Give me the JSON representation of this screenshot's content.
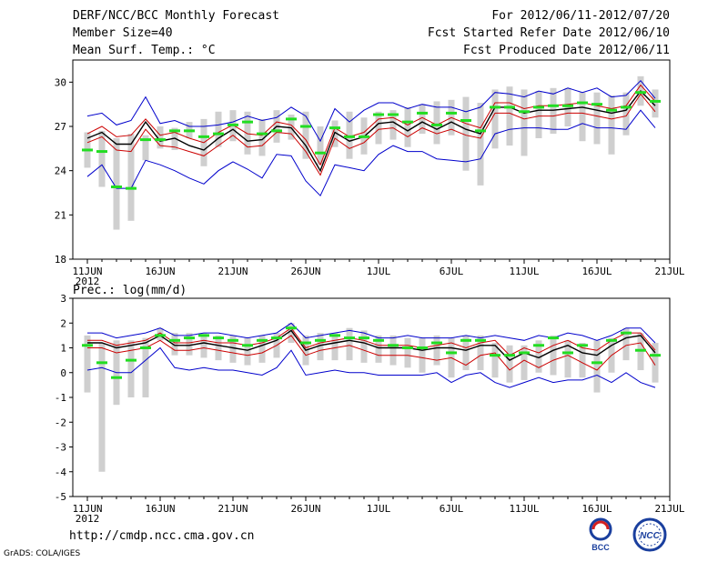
{
  "header": {
    "title": "DERF/NCC/BCC Monthly Forecast",
    "member_size": "Member Size=40",
    "variable": "Mean Surf. Temp.: °C",
    "period": "For 2012/06/11-2012/07/20",
    "fcst_started": "Fcst Started Refer Date 2012/06/10",
    "fcst_produced": "Fcst Produced Date 2012/06/11"
  },
  "footer": {
    "url": "http://cmdp.ncc.cma.gov.cn",
    "grads": "GrADS: COLA/IGES",
    "logo_bcc": "BCC",
    "logo_ncc": "NCC"
  },
  "colors": {
    "envelope": "#0000cc",
    "mean": "#cc0000",
    "center": "#000000",
    "member": "#22dd22",
    "box": "#cfcfcf"
  },
  "chart_data": [
    {
      "type": "line",
      "title": "Mean Surf. Temp.: °C",
      "ylim": [
        18,
        31.5
      ],
      "yticks": [
        18,
        21,
        24,
        27,
        30
      ],
      "xlim": [
        0,
        40
      ],
      "xtick_labels": [
        "11JUN",
        "16JUN",
        "21JUN",
        "26JUN",
        "1JUL",
        "6JUL",
        "11JUL",
        "16JUL",
        "21JUL"
      ],
      "x_start_label": "2012",
      "series": [
        {
          "name": "upper",
          "values": [
            27.7,
            27.9,
            27.1,
            27.4,
            29.0,
            27.2,
            27.4,
            27.0,
            27.0,
            27.1,
            27.3,
            27.7,
            27.4,
            27.6,
            28.3,
            27.7,
            26.0,
            28.2,
            27.3,
            28.1,
            28.6,
            28.6,
            28.2,
            28.5,
            28.3,
            28.3,
            28.0,
            28.3,
            29.3,
            29.2,
            29.0,
            29.4,
            29.2,
            29.6,
            29.3,
            29.6,
            29.0,
            29.1,
            30.1,
            28.9
          ]
        },
        {
          "name": "upper_mean",
          "values": [
            26.5,
            27.0,
            26.3,
            26.4,
            27.5,
            26.4,
            26.6,
            26.2,
            25.9,
            26.6,
            27.1,
            26.5,
            26.4,
            27.3,
            27.1,
            26.1,
            24.4,
            26.9,
            26.3,
            26.6,
            27.5,
            27.6,
            27.1,
            27.6,
            27.1,
            27.6,
            27.2,
            26.9,
            28.6,
            28.6,
            28.2,
            28.4,
            28.4,
            28.5,
            28.6,
            28.4,
            28.2,
            28.4,
            29.8,
            28.7
          ]
        },
        {
          "name": "center",
          "values": [
            26.2,
            26.6,
            25.8,
            25.8,
            27.3,
            26.0,
            26.2,
            25.7,
            25.4,
            26.2,
            26.8,
            26.0,
            26.1,
            27.0,
            26.9,
            25.7,
            24.0,
            26.6,
            26.0,
            26.3,
            27.2,
            27.3,
            26.7,
            27.3,
            26.8,
            27.3,
            26.8,
            26.5,
            28.3,
            28.3,
            27.9,
            28.1,
            28.1,
            28.2,
            28.3,
            28.1,
            27.9,
            28.1,
            29.4,
            28.4
          ]
        },
        {
          "name": "lower_mean",
          "values": [
            25.9,
            26.3,
            25.4,
            25.3,
            26.8,
            25.7,
            25.6,
            25.3,
            25.0,
            25.7,
            26.4,
            25.6,
            25.7,
            26.6,
            26.5,
            25.3,
            23.7,
            26.2,
            25.5,
            25.9,
            26.8,
            26.9,
            26.3,
            26.9,
            26.5,
            26.8,
            26.4,
            26.2,
            27.9,
            27.9,
            27.5,
            27.7,
            27.7,
            27.9,
            27.9,
            27.7,
            27.5,
            27.7,
            29.2,
            28.0
          ]
        },
        {
          "name": "lower",
          "values": [
            23.6,
            24.4,
            22.8,
            22.8,
            24.7,
            24.4,
            24.0,
            23.5,
            23.1,
            24.0,
            24.6,
            24.1,
            23.5,
            25.1,
            25.0,
            23.3,
            22.3,
            24.4,
            24.2,
            24.0,
            25.1,
            25.7,
            25.3,
            25.3,
            24.8,
            24.7,
            24.6,
            24.8,
            26.5,
            26.8,
            26.9,
            26.9,
            26.8,
            26.8,
            27.2,
            26.9,
            26.9,
            26.8,
            28.1,
            26.9
          ]
        },
        {
          "name": "member_dash",
          "values": [
            25.4,
            25.3,
            22.9,
            22.8,
            26.1,
            26.1,
            26.7,
            26.7,
            26.3,
            26.5,
            27.1,
            27.3,
            26.5,
            26.7,
            27.5,
            27.0,
            25.2,
            26.9,
            26.3,
            26.3,
            27.8,
            27.8,
            27.3,
            27.9,
            27.1,
            27.9,
            27.4,
            26.7,
            28.3,
            28.3,
            28.0,
            28.3,
            28.4,
            28.4,
            28.6,
            28.5,
            28.1,
            28.3,
            29.3,
            28.7
          ]
        },
        {
          "name": "box_high",
          "values": [
            26.6,
            26.7,
            26.2,
            26.5,
            26.4,
            27.0,
            26.9,
            27.3,
            27.5,
            28.0,
            28.1,
            28.0,
            27.5,
            28.1,
            27.8,
            28.0,
            27.0,
            27.4,
            28.0,
            27.6,
            28.0,
            28.1,
            28.3,
            28.5,
            28.7,
            28.8,
            29.0,
            28.6,
            29.5,
            29.7,
            29.5,
            29.4,
            29.6,
            29.6,
            29.3,
            29.3,
            29.1,
            29.3,
            30.4,
            29.5
          ]
        },
        {
          "name": "box_low",
          "values": [
            24.2,
            22.9,
            20.0,
            20.6,
            24.7,
            25.5,
            25.4,
            26.2,
            24.3,
            25.6,
            26.0,
            25.1,
            25.0,
            25.9,
            26.1,
            24.8,
            24.4,
            25.6,
            24.8,
            25.1,
            25.8,
            26.1,
            25.6,
            26.5,
            25.8,
            26.4,
            24.0,
            23.0,
            25.5,
            25.7,
            25.0,
            26.2,
            26.5,
            27.0,
            26.0,
            25.8,
            25.1,
            26.4,
            28.4,
            27.6
          ]
        }
      ]
    },
    {
      "type": "line",
      "title": "Prec.: log(mm/d)",
      "ylim": [
        -5,
        3
      ],
      "yticks": [
        -5,
        -4,
        -3,
        -2,
        -1,
        0,
        1,
        2,
        3
      ],
      "xlim": [
        0,
        40
      ],
      "xtick_labels": [
        "11JUN",
        "16JUN",
        "21JUN",
        "26JUN",
        "1JUL",
        "6JUL",
        "11JUL",
        "16JUL",
        "21JUL"
      ],
      "x_start_label": "2012",
      "series": [
        {
          "name": "upper",
          "values": [
            1.6,
            1.6,
            1.4,
            1.5,
            1.6,
            1.8,
            1.5,
            1.5,
            1.6,
            1.6,
            1.5,
            1.4,
            1.5,
            1.6,
            2.0,
            1.4,
            1.5,
            1.6,
            1.7,
            1.6,
            1.4,
            1.4,
            1.5,
            1.4,
            1.4,
            1.4,
            1.5,
            1.4,
            1.5,
            1.4,
            1.3,
            1.5,
            1.4,
            1.6,
            1.5,
            1.3,
            1.5,
            1.8,
            1.8,
            1.2
          ]
        },
        {
          "name": "upper_mean",
          "values": [
            1.3,
            1.3,
            1.1,
            1.2,
            1.3,
            1.6,
            1.2,
            1.2,
            1.3,
            1.2,
            1.2,
            1.1,
            1.2,
            1.4,
            1.8,
            1.0,
            1.2,
            1.3,
            1.4,
            1.3,
            1.1,
            1.1,
            1.1,
            1.0,
            1.1,
            1.2,
            1.0,
            1.2,
            1.3,
            0.7,
            1.0,
            0.8,
            1.1,
            1.3,
            1.0,
            0.9,
            1.3,
            1.6,
            1.6,
            0.9
          ]
        },
        {
          "name": "center",
          "values": [
            1.2,
            1.2,
            1.0,
            1.1,
            1.2,
            1.5,
            1.1,
            1.1,
            1.2,
            1.1,
            1.0,
            0.9,
            1.1,
            1.3,
            1.7,
            0.9,
            1.1,
            1.2,
            1.3,
            1.2,
            1.0,
            1.0,
            1.0,
            0.9,
            1.0,
            1.0,
            0.9,
            1.1,
            1.1,
            0.5,
            0.8,
            0.6,
            0.9,
            1.1,
            0.8,
            0.7,
            1.1,
            1.4,
            1.5,
            0.8
          ]
        },
        {
          "name": "lower_mean",
          "values": [
            1.0,
            1.0,
            0.8,
            0.9,
            1.0,
            1.3,
            0.9,
            0.9,
            1.0,
            0.9,
            0.8,
            0.7,
            0.8,
            1.1,
            1.5,
            0.7,
            0.9,
            1.0,
            1.1,
            0.9,
            0.7,
            0.7,
            0.7,
            0.6,
            0.5,
            0.6,
            0.3,
            0.7,
            0.8,
            0.1,
            0.5,
            0.2,
            0.5,
            0.7,
            0.4,
            0.1,
            0.7,
            1.1,
            1.2,
            0.3
          ]
        },
        {
          "name": "lower",
          "values": [
            0.1,
            0.2,
            0.0,
            0.0,
            0.5,
            1.0,
            0.2,
            0.1,
            0.2,
            0.1,
            0.1,
            0.0,
            -0.1,
            0.2,
            0.9,
            -0.1,
            0.0,
            0.1,
            0.0,
            0.0,
            -0.1,
            -0.1,
            -0.1,
            -0.1,
            0.0,
            -0.4,
            -0.1,
            0.0,
            -0.4,
            -0.6,
            -0.4,
            -0.2,
            -0.4,
            -0.3,
            -0.3,
            -0.1,
            -0.4,
            0.0,
            -0.4,
            -0.6
          ]
        },
        {
          "name": "member_dash",
          "values": [
            1.1,
            0.4,
            -0.2,
            0.5,
            1.0,
            1.5,
            1.3,
            1.4,
            1.5,
            1.4,
            1.3,
            1.1,
            1.3,
            1.4,
            1.8,
            1.2,
            1.3,
            1.5,
            1.4,
            1.4,
            1.3,
            1.1,
            1.0,
            1.0,
            1.2,
            0.8,
            1.3,
            1.3,
            0.7,
            0.7,
            0.8,
            1.1,
            1.4,
            0.8,
            1.1,
            0.4,
            1.3,
            1.6,
            0.9,
            0.7
          ]
        },
        {
          "name": "box_high",
          "values": [
            1.5,
            1.2,
            1.3,
            1.3,
            1.4,
            1.8,
            1.6,
            1.6,
            1.6,
            1.5,
            1.5,
            1.4,
            1.5,
            1.6,
            2.0,
            1.5,
            1.6,
            1.6,
            1.8,
            1.7,
            1.5,
            1.5,
            1.4,
            1.4,
            1.5,
            1.4,
            1.5,
            1.5,
            1.2,
            1.1,
            1.1,
            1.3,
            1.5,
            1.3,
            1.2,
            1.3,
            1.4,
            1.8,
            1.6,
            1.2
          ]
        },
        {
          "name": "box_low",
          "values": [
            -0.8,
            -4.0,
            -1.3,
            -1.0,
            -1.0,
            1.3,
            0.7,
            0.7,
            0.6,
            0.5,
            0.4,
            0.3,
            0.4,
            0.6,
            1.2,
            0.3,
            0.5,
            0.5,
            0.5,
            0.4,
            0.4,
            0.3,
            0.2,
            0.0,
            0.3,
            -0.2,
            0.1,
            0.1,
            -0.2,
            -0.4,
            -0.3,
            0.0,
            -0.1,
            -0.2,
            -0.2,
            -0.8,
            0.0,
            0.5,
            0.1,
            -0.4
          ]
        }
      ]
    }
  ]
}
